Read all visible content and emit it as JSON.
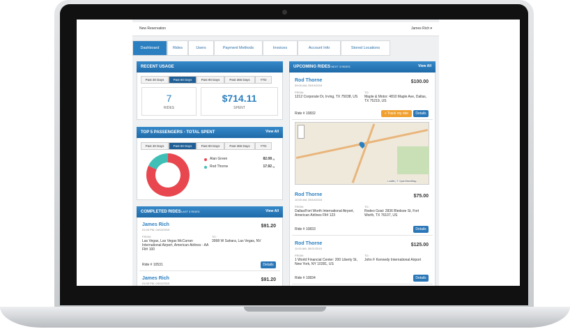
{
  "topbar": {
    "new_reservation": "New Reservation",
    "user": "James Rich ▾"
  },
  "tabs": [
    "Dashboard",
    "Rides",
    "Users",
    "Payment Methods",
    "Invoices",
    "Account Info",
    "Stored Locations"
  ],
  "labels": {
    "from": "FROM:",
    "to": "TO:",
    "details": "Details"
  },
  "recent_usage": {
    "title": "RECENT USAGE",
    "filters": [
      "Past 30 Days",
      "Past 60 Days",
      "Past 90 Days",
      "Past 365 Days",
      "YTD"
    ],
    "rides": "7",
    "rides_label": "RIDES",
    "spent": "$714.11",
    "spent_label": "SPENT"
  },
  "top_passengers": {
    "title": "TOP 5 PASSENGERS - TOTAL SPENT",
    "view_all": "View All",
    "filters": [
      "Past 30 Days",
      "Past 60 Days",
      "Past 90 Days",
      "Past 365 Days",
      "YTD"
    ],
    "passengers": [
      {
        "name": "Alan Green",
        "color": "#e8474f",
        "percent": 82.08,
        "unit": "%"
      },
      {
        "name": "Rod Thorne",
        "color": "#3fbfb6",
        "percent": 17.92,
        "unit": "%"
      }
    ]
  },
  "completed_rides": {
    "title": "COMPLETED RIDES",
    "subtitle": "- LAST 3 RIDES",
    "view_all": "View All",
    "rides": [
      {
        "name": "James Rich",
        "time": "01:00 PM, 04/13/2015",
        "price": "$91.20",
        "from": "Las Vegas, Las Vegas McCarran International Airport, American Airlines - AA Flt# 100",
        "to": "3998 W Sahara, Las Vegas, NV",
        "ride_no": "Ride # 10531"
      },
      {
        "name": "James Rich",
        "time": "01:00 PM, 04/13/2015",
        "price": "$91.20"
      }
    ]
  },
  "upcoming_rides": {
    "title": "UPCOMING RIDES",
    "subtitle": "- NEXT 3 RIDES",
    "view_all": "View All",
    "track": "» Track my ride",
    "map_attribution": "Leaflet | © OpenStreetMap",
    "rides": [
      {
        "name": "Rod Thorne",
        "time": "09:00 AM, 05/10/2015",
        "price": "$100.00",
        "from": "1212 Corporate Dr, Irving, TX 75038, US",
        "to": "Maple & Motor: 4810 Maple Ave, Dallas, TX 75219, US",
        "ride_no": "Ride # 10832"
      },
      {
        "name": "Rod Thorne",
        "time": "10:00 AM, 05/10/2015",
        "price": "$75.00",
        "from": "Dallas/Fort Worth International Airport, American Airlines Flt# 123",
        "to": "Rodeo Goat: 2836 Bledsoe St, Fort Worth, TX 76107, US",
        "ride_no": "Ride # 10833"
      },
      {
        "name": "Rod Thorne",
        "time": "11:00 AM, 05/21/2015",
        "price": "$125.00",
        "from": "1 World Financial Center: 200 Liberty St, New York, NY 10281, US",
        "to": "John F Kennedy International Airport",
        "ride_no": "Ride # 10834"
      }
    ]
  }
}
